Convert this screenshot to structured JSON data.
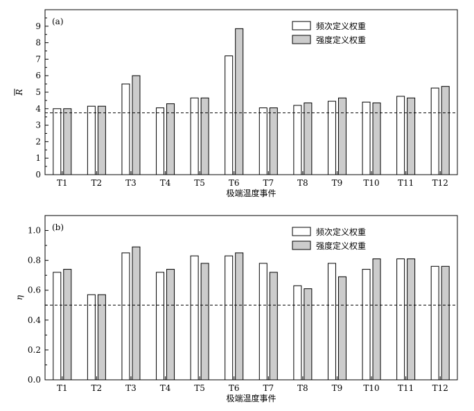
{
  "chart_data": [
    {
      "type": "bar",
      "panel_label": "(a)",
      "categories": [
        "T1",
        "T2",
        "T3",
        "T4",
        "T5",
        "T6",
        "T7",
        "T8",
        "T9",
        "T10",
        "T11",
        "T12"
      ],
      "series": [
        {
          "name": "频次定义权重",
          "color": "#ffffff",
          "values": [
            4.0,
            4.15,
            5.5,
            4.05,
            4.65,
            7.2,
            4.05,
            4.2,
            4.45,
            4.4,
            4.75,
            5.25
          ]
        },
        {
          "name": "强度定义权重",
          "color": "#cccccc",
          "values": [
            4.0,
            4.15,
            6.0,
            4.3,
            4.65,
            8.85,
            4.05,
            4.35,
            4.65,
            4.35,
            4.65,
            5.35
          ]
        }
      ],
      "reference_line": 3.75,
      "xlabel": "极端温度事件",
      "ylabel": "R",
      "ylabel_overbar": true,
      "ylim": [
        0,
        10
      ],
      "yticks": [
        0,
        1,
        2,
        3,
        4,
        5,
        6,
        7,
        8,
        9
      ],
      "legend_position": "top-right",
      "grid": false
    },
    {
      "type": "bar",
      "panel_label": "(b)",
      "categories": [
        "T1",
        "T2",
        "T3",
        "T4",
        "T5",
        "T6",
        "T7",
        "T8",
        "T9",
        "T10",
        "T11",
        "T12"
      ],
      "series": [
        {
          "name": "频次定义权重",
          "color": "#ffffff",
          "values": [
            0.72,
            0.57,
            0.85,
            0.72,
            0.83,
            0.83,
            0.78,
            0.63,
            0.78,
            0.74,
            0.81,
            0.76
          ]
        },
        {
          "name": "强度定义权重",
          "color": "#cccccc",
          "values": [
            0.74,
            0.57,
            0.89,
            0.74,
            0.78,
            0.85,
            0.72,
            0.61,
            0.69,
            0.81,
            0.81,
            0.76
          ]
        }
      ],
      "reference_line": 0.5,
      "xlabel": "极端温度事件",
      "ylabel": "η",
      "ylim": [
        0,
        1.1
      ],
      "yticks": [
        0.0,
        0.2,
        0.4,
        0.6,
        0.8,
        1.0
      ],
      "ytick_labels": [
        "0.0",
        "0.2",
        "0.4",
        "0.6",
        "0.8",
        "1.0"
      ],
      "legend_position": "top-right",
      "grid": false
    }
  ]
}
